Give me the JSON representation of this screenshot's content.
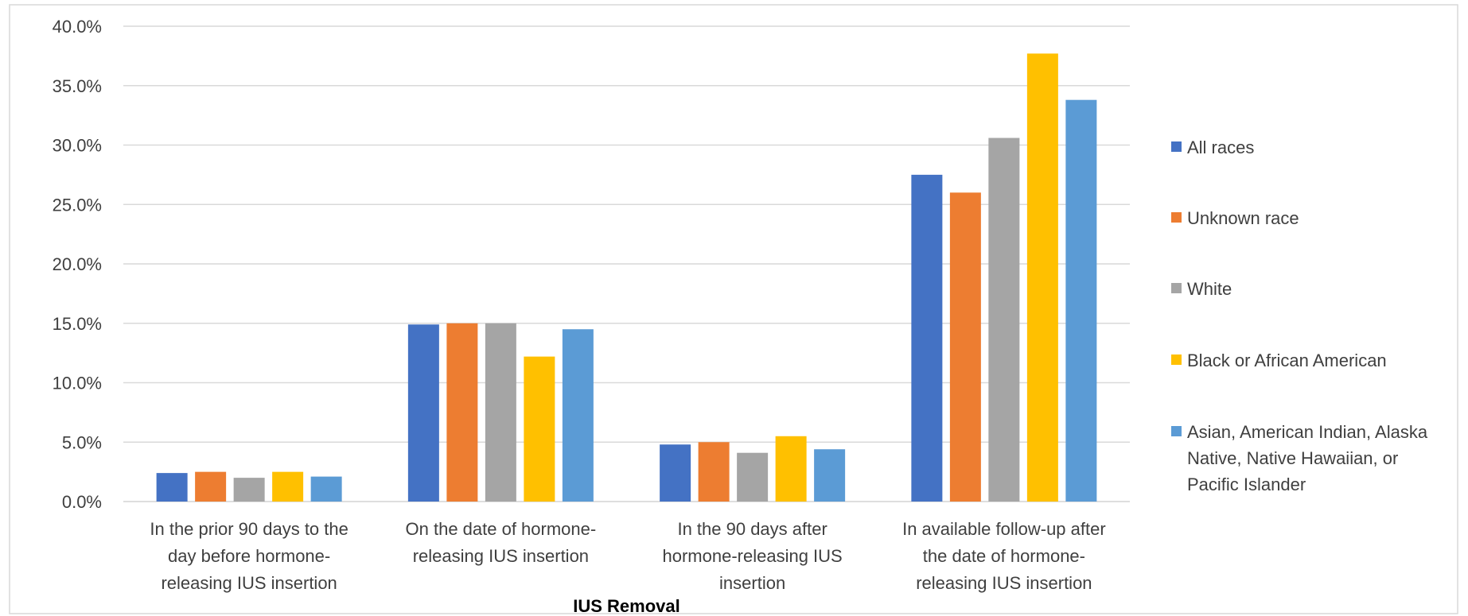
{
  "chart_data": {
    "type": "bar",
    "title": "",
    "xlabel": "IUS Removal",
    "ylabel": "",
    "ylim": [
      0,
      40
    ],
    "y_ticks": [
      "0.0%",
      "5.0%",
      "10.0%",
      "15.0%",
      "20.0%",
      "25.0%",
      "30.0%",
      "35.0%",
      "40.0%"
    ],
    "grid": true,
    "legend_position": "right",
    "categories": [
      "In the prior 90 days to the day before hormone-releasing IUS insertion",
      "On the date of hormone-releasing IUS insertion",
      "In the 90 days after hormone-releasing IUS insertion",
      "In available follow-up after the date of hormone-releasing IUS insertion"
    ],
    "category_label_lines": [
      [
        "In the prior 90 days to the",
        "day before hormone-",
        "releasing IUS insertion"
      ],
      [
        "On the date of hormone-",
        "releasing IUS insertion"
      ],
      [
        "In the 90 days after",
        "hormone-releasing IUS",
        "insertion"
      ],
      [
        "In available follow-up after",
        "the date of hormone-",
        "releasing IUS insertion"
      ]
    ],
    "series": [
      {
        "name": "All races",
        "color": "#4472C4",
        "values": [
          2.4,
          14.9,
          4.8,
          27.5
        ]
      },
      {
        "name": "Unknown race",
        "color": "#ED7D31",
        "values": [
          2.5,
          15.0,
          5.0,
          26.0
        ]
      },
      {
        "name": "White",
        "color": "#A5A5A5",
        "values": [
          2.0,
          15.0,
          4.1,
          30.6
        ]
      },
      {
        "name": "Black or African American",
        "color": "#FFC000",
        "values": [
          2.5,
          12.2,
          5.5,
          37.7
        ]
      },
      {
        "name": "Asian, American Indian, Alaska Native, Native Hawaiian, or Pacific Islander",
        "color": "#5B9BD5",
        "values": [
          2.1,
          14.5,
          4.4,
          33.8
        ]
      }
    ],
    "legend_label_lines": [
      [
        "All races"
      ],
      [
        "Unknown race"
      ],
      [
        "White"
      ],
      [
        "Black or African American"
      ],
      [
        "Asian, American Indian, Alaska",
        "Native, Native Hawaiian, or",
        "Pacific Islander"
      ]
    ]
  }
}
